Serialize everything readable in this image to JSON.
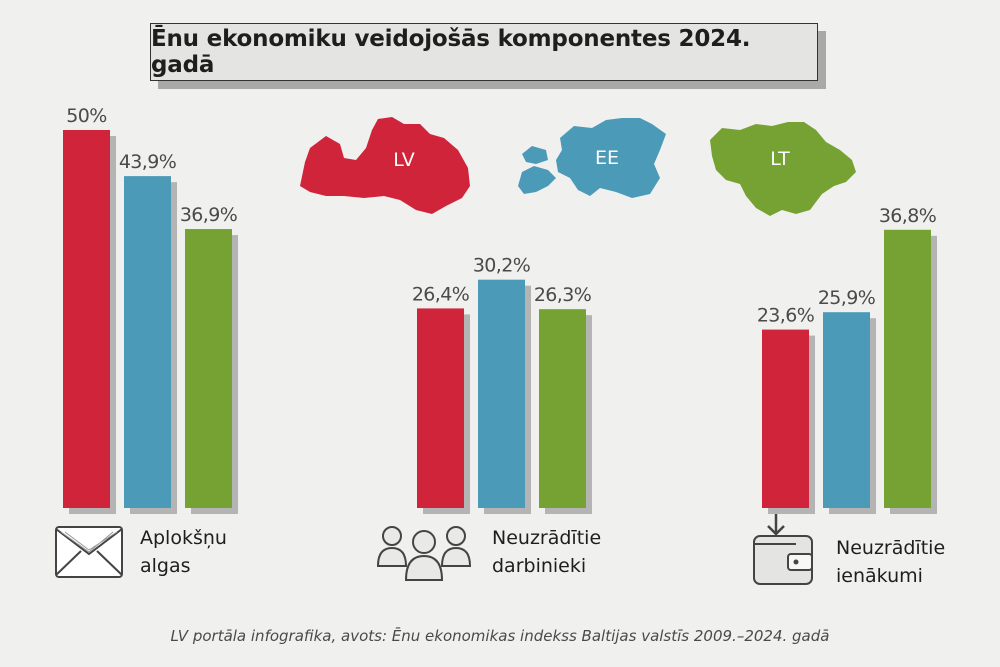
{
  "title": "Ēnu ekonomiku veidojošās komponentes 2024. gadā",
  "footer": "LV portāla infografika, avots: Ēnu ekonomikas indekss Baltijas valstīs 2009.–2024. gadā",
  "colors": {
    "LV": "#d0243b",
    "EE": "#4b9ab8",
    "LT": "#76a234",
    "shadow": "#b4b4b4",
    "background": "#f0f0ee"
  },
  "countries": [
    {
      "code": "LV",
      "label": "LV"
    },
    {
      "code": "EE",
      "label": "EE"
    },
    {
      "code": "LT",
      "label": "LT"
    }
  ],
  "categories": [
    {
      "line1": "Aplokšņu",
      "line2": "algas",
      "icon": "envelope-icon"
    },
    {
      "line1": "Neuzrādītie",
      "line2": "darbinieki",
      "icon": "people-icon"
    },
    {
      "line1": "Neuzrādītie",
      "line2": "ienākumi",
      "icon": "wallet-icon"
    }
  ],
  "chart_data": {
    "type": "bar",
    "title": "Ēnu ekonomiku veidojošās komponentes 2024. gadā",
    "categories": [
      "Aplokšņu algas",
      "Neuzrādītie darbinieki",
      "Neuzrādītie ienākumi"
    ],
    "series": [
      {
        "name": "LV",
        "values": [
          50,
          26.4,
          23.6
        ],
        "labels": [
          "50%",
          "26,4%",
          "23,6%"
        ]
      },
      {
        "name": "EE",
        "values": [
          43.9,
          30.2,
          25.9
        ],
        "labels": [
          "43,9%",
          "30,2%",
          "25,9%"
        ]
      },
      {
        "name": "LT",
        "values": [
          36.9,
          26.3,
          36.8
        ],
        "labels": [
          "36,9%",
          "26,3%",
          "36,8%"
        ]
      }
    ],
    "ylim": [
      0,
      50
    ],
    "grid": false,
    "legend": "country maps at top"
  }
}
